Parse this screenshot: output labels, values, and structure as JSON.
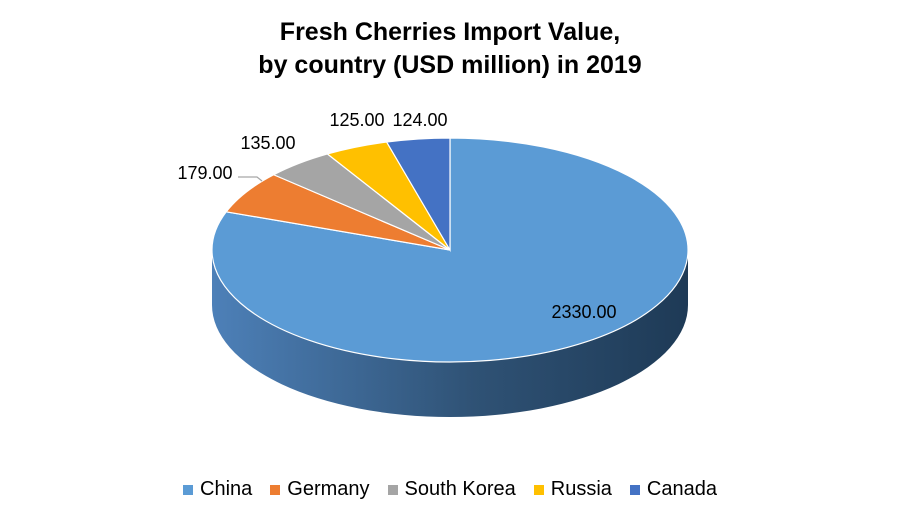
{
  "chart_data": {
    "type": "pie",
    "title_line1": "Fresh Cherries Import Value,",
    "title_line2": "by country (USD million) in 2019",
    "slices": [
      {
        "label": "China",
        "value": 2330.0,
        "display": "2330.00",
        "color": "#5B9BD5"
      },
      {
        "label": "Germany",
        "value": 179.0,
        "display": "179.00",
        "color": "#ED7D31"
      },
      {
        "label": "South Korea",
        "value": 135.0,
        "display": "135.00",
        "color": "#A5A5A5"
      },
      {
        "label": "Russia",
        "value": 125.0,
        "display": "125.00",
        "color": "#FFC000"
      },
      {
        "label": "Canada",
        "value": 124.0,
        "display": "124.00",
        "color": "#4472C4"
      }
    ],
    "legend_position": "bottom"
  }
}
